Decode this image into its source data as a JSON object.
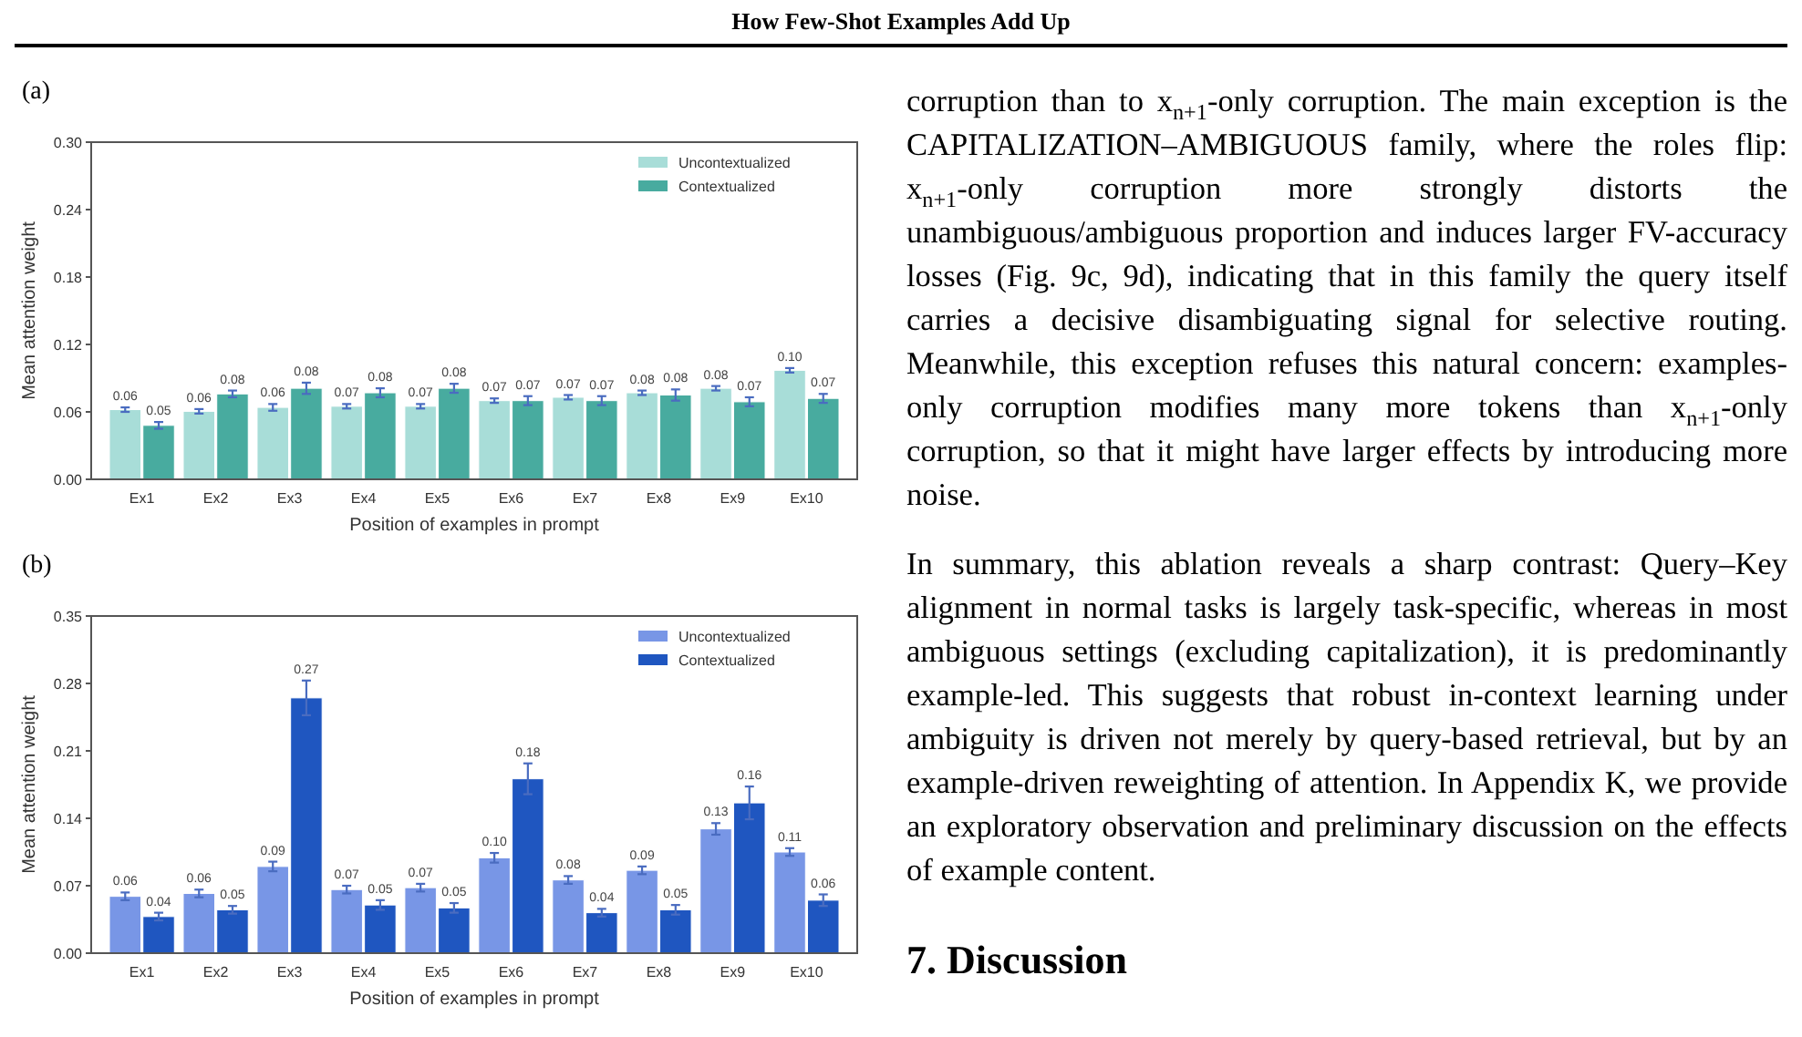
{
  "chart_data": [
    {
      "type": "other",
      "title": "How Few-Shot Examples Add Up"
    },
    {
      "type": "bar",
      "title": "(a)",
      "xlabel": "Position of examples in prompt",
      "ylabel": "Mean attention weight",
      "categories": [
        "Ex1",
        "Ex2",
        "Ex3",
        "Ex4",
        "Ex5",
        "Ex6",
        "Ex7",
        "Ex8",
        "Ex9",
        "Ex10"
      ],
      "ylim": [
        0,
        0.3
      ],
      "yticks": [
        {
          "value": 0,
          "label": "0.00"
        },
        {
          "value": 0.06,
          "label": "0.06"
        },
        {
          "value": 0.12,
          "label": "0.12"
        },
        {
          "value": 0.18,
          "label": "0.18"
        },
        {
          "value": 0.24,
          "label": "0.24"
        },
        {
          "value": 0.3,
          "label": "0.30"
        }
      ],
      "legend": "top right",
      "series": [
        {
          "name": "Uncontextualized",
          "color": "#a8ddd8",
          "values": [
            0.062,
            0.0605,
            0.064,
            0.065,
            0.065,
            0.07,
            0.073,
            0.077,
            0.081,
            0.097
          ],
          "errors": [
            0.002,
            0.002,
            0.003,
            0.002,
            0.002,
            0.002,
            0.002,
            0.002,
            0.002,
            0.002
          ],
          "value_labels": [
            "0.06",
            "0.06",
            "0.06",
            "0.07",
            "0.07",
            "0.07",
            "0.07",
            "0.08",
            "0.08",
            "0.10"
          ]
        },
        {
          "name": "Contextualized",
          "color": "#48ab9f",
          "values": [
            0.048,
            0.076,
            0.081,
            0.077,
            0.081,
            0.07,
            0.07,
            0.075,
            0.069,
            0.072
          ],
          "errors": [
            0.003,
            0.003,
            0.005,
            0.004,
            0.004,
            0.004,
            0.004,
            0.005,
            0.004,
            0.004
          ],
          "value_labels": [
            "0.05",
            "0.08",
            "0.08",
            "0.08",
            "0.08",
            "0.07",
            "0.07",
            "0.08",
            "0.07",
            "0.07"
          ]
        }
      ]
    },
    {
      "type": "bar",
      "title": "(b)",
      "xlabel": "Position of examples in prompt",
      "ylabel": "Mean attention weight",
      "categories": [
        "Ex1",
        "Ex2",
        "Ex3",
        "Ex4",
        "Ex5",
        "Ex6",
        "Ex7",
        "Ex8",
        "Ex9",
        "Ex10"
      ],
      "ylim": [
        0,
        0.35
      ],
      "yticks": [
        {
          "value": 0,
          "label": "0.00"
        },
        {
          "value": 0.07,
          "label": "0.07"
        },
        {
          "value": 0.14,
          "label": "0.14"
        },
        {
          "value": 0.21,
          "label": "0.21"
        },
        {
          "value": 0.28,
          "label": "0.28"
        },
        {
          "value": 0.35,
          "label": "0.35"
        }
      ],
      "legend": "top right",
      "series": [
        {
          "name": "Uncontextualized",
          "color": "#7896e6",
          "values": [
            0.059,
            0.062,
            0.09,
            0.066,
            0.068,
            0.099,
            0.076,
            0.086,
            0.129,
            0.105
          ],
          "errors": [
            0.004,
            0.004,
            0.005,
            0.004,
            0.004,
            0.005,
            0.004,
            0.004,
            0.006,
            0.004
          ],
          "value_labels": [
            "0.06",
            "0.06",
            "0.09",
            "0.07",
            "0.07",
            "0.10",
            "0.08",
            "0.09",
            "0.13",
            "0.11"
          ]
        },
        {
          "name": "Contextualized",
          "color": "#1f56c0",
          "values": [
            0.038,
            0.045,
            0.265,
            0.05,
            0.047,
            0.181,
            0.042,
            0.045,
            0.156,
            0.055
          ],
          "errors": [
            0.004,
            0.004,
            0.018,
            0.005,
            0.005,
            0.016,
            0.004,
            0.005,
            0.017,
            0.006
          ],
          "value_labels": [
            "0.04",
            "0.05",
            "0.27",
            "0.05",
            "0.05",
            "0.18",
            "0.04",
            "0.05",
            "0.16",
            "0.06"
          ]
        }
      ]
    },
    {
      "type": "other",
      "annotations": [
        "corruption than to x$_{n+1}$-only corruption. The main exception is the CAPITALIZATION–AMBIGUOUS family, where the roles flip: x$_{n+1}$-only corruption more strongly distorts the unambiguous/ambiguous proportion and induces larger FV-accuracy losses (Fig. 9c, 9d), indicating that in this family the query itself carries a decisive disambiguating signal for selective routing. Meanwhile, this exception refuses this natural concern: examples-only corruption modifies many more tokens than x$_{n+1}$-only corruption, so that it might have larger effects by introducing more noise.",
        "In summary, this ablation reveals a sharp contrast: Query–Key alignment in normal tasks is largely task-specific, whereas in most ambiguous settings (excluding capitalization), it is predominantly example-led. This suggests that robust in-context learning under ambiguity is driven not merely by query-based retrieval, but by an example-driven reweighting of attention. In Appendix K, we provide an exploratory observation and preliminary discussion on the effects of example content.",
        "7. Discussion"
      ]
    }
  ]
}
